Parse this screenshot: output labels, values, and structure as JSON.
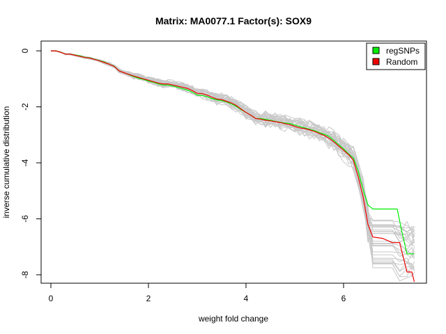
{
  "chart_data": {
    "type": "line",
    "title": "Matrix: MA0077.1 Factor(s): SOX9",
    "xlabel": "weight fold change",
    "ylabel": "inverse cumulative distribution",
    "xlim": [
      -0.2,
      7.7
    ],
    "ylim": [
      -8.3,
      0.35
    ],
    "x_ticks": [
      0,
      2,
      4,
      6
    ],
    "y_ticks": [
      0,
      -2,
      -4,
      -6,
      -8
    ],
    "grid": false,
    "legend_position": "top-right",
    "legend": [
      {
        "label": "regSNPs",
        "color": "#00ee00"
      },
      {
        "label": "Random",
        "color": "#ee0000"
      }
    ],
    "series": [
      {
        "name": "regSNPs",
        "color": "#00ee00",
        "points": [
          [
            0.0,
            0.0
          ],
          [
            0.1,
            0.0
          ],
          [
            0.2,
            -0.05
          ],
          [
            0.3,
            -0.12
          ],
          [
            0.4,
            -0.12
          ],
          [
            0.5,
            -0.15
          ],
          [
            0.6,
            -0.18
          ],
          [
            0.7,
            -0.23
          ],
          [
            0.8,
            -0.25
          ],
          [
            0.9,
            -0.3
          ],
          [
            1.0,
            -0.35
          ],
          [
            1.1,
            -0.4
          ],
          [
            1.2,
            -0.48
          ],
          [
            1.3,
            -0.55
          ],
          [
            1.4,
            -0.72
          ],
          [
            1.5,
            -0.78
          ],
          [
            1.6,
            -0.85
          ],
          [
            1.7,
            -0.92
          ],
          [
            1.8,
            -0.98
          ],
          [
            1.9,
            -1.02
          ],
          [
            2.0,
            -1.08
          ],
          [
            2.1,
            -1.12
          ],
          [
            2.2,
            -1.18
          ],
          [
            2.3,
            -1.22
          ],
          [
            2.4,
            -1.22
          ],
          [
            2.5,
            -1.26
          ],
          [
            2.6,
            -1.3
          ],
          [
            2.7,
            -1.35
          ],
          [
            2.8,
            -1.4
          ],
          [
            2.9,
            -1.48
          ],
          [
            3.0,
            -1.58
          ],
          [
            3.1,
            -1.6
          ],
          [
            3.2,
            -1.63
          ],
          [
            3.3,
            -1.7
          ],
          [
            3.4,
            -1.75
          ],
          [
            3.5,
            -1.78
          ],
          [
            3.6,
            -1.82
          ],
          [
            3.7,
            -1.9
          ],
          [
            3.8,
            -1.98
          ],
          [
            3.9,
            -2.1
          ],
          [
            4.0,
            -2.2
          ],
          [
            4.1,
            -2.3
          ],
          [
            4.2,
            -2.42
          ],
          [
            4.3,
            -2.42
          ],
          [
            4.4,
            -2.45
          ],
          [
            4.5,
            -2.48
          ],
          [
            4.6,
            -2.52
          ],
          [
            4.7,
            -2.55
          ],
          [
            4.8,
            -2.58
          ],
          [
            4.9,
            -2.6
          ],
          [
            5.0,
            -2.65
          ],
          [
            5.1,
            -2.7
          ],
          [
            5.2,
            -2.75
          ],
          [
            5.3,
            -2.8
          ],
          [
            5.4,
            -2.85
          ],
          [
            5.5,
            -2.92
          ],
          [
            5.6,
            -2.98
          ],
          [
            5.7,
            -3.05
          ],
          [
            5.8,
            -3.2
          ],
          [
            5.9,
            -3.35
          ],
          [
            6.0,
            -3.5
          ],
          [
            6.1,
            -3.68
          ],
          [
            6.2,
            -3.82
          ],
          [
            6.3,
            -4.3
          ],
          [
            6.4,
            -4.95
          ],
          [
            6.5,
            -5.5
          ],
          [
            6.6,
            -5.65
          ],
          [
            7.1,
            -5.65
          ],
          [
            7.2,
            -6.5
          ],
          [
            7.3,
            -7.25
          ],
          [
            7.45,
            -7.25
          ]
        ]
      },
      {
        "name": "Random",
        "color": "#ee0000",
        "points": [
          [
            0.0,
            0.0
          ],
          [
            0.1,
            0.0
          ],
          [
            0.2,
            -0.05
          ],
          [
            0.3,
            -0.12
          ],
          [
            0.4,
            -0.12
          ],
          [
            0.5,
            -0.16
          ],
          [
            0.6,
            -0.2
          ],
          [
            0.7,
            -0.24
          ],
          [
            0.8,
            -0.26
          ],
          [
            0.9,
            -0.31
          ],
          [
            1.0,
            -0.36
          ],
          [
            1.1,
            -0.42
          ],
          [
            1.2,
            -0.48
          ],
          [
            1.3,
            -0.56
          ],
          [
            1.4,
            -0.72
          ],
          [
            1.5,
            -0.78
          ],
          [
            1.6,
            -0.84
          ],
          [
            1.7,
            -0.9
          ],
          [
            1.8,
            -0.95
          ],
          [
            1.9,
            -1.0
          ],
          [
            2.0,
            -1.05
          ],
          [
            2.1,
            -1.1
          ],
          [
            2.2,
            -1.15
          ],
          [
            2.3,
            -1.18
          ],
          [
            2.4,
            -1.18
          ],
          [
            2.5,
            -1.22
          ],
          [
            2.6,
            -1.26
          ],
          [
            2.7,
            -1.3
          ],
          [
            2.8,
            -1.34
          ],
          [
            2.9,
            -1.42
          ],
          [
            3.0,
            -1.52
          ],
          [
            3.1,
            -1.53
          ],
          [
            3.2,
            -1.58
          ],
          [
            3.3,
            -1.65
          ],
          [
            3.4,
            -1.72
          ],
          [
            3.5,
            -1.74
          ],
          [
            3.6,
            -1.8
          ],
          [
            3.7,
            -1.86
          ],
          [
            3.8,
            -1.95
          ],
          [
            3.9,
            -2.08
          ],
          [
            4.0,
            -2.2
          ],
          [
            4.1,
            -2.3
          ],
          [
            4.2,
            -2.42
          ],
          [
            4.3,
            -2.44
          ],
          [
            4.4,
            -2.48
          ],
          [
            4.5,
            -2.5
          ],
          [
            4.6,
            -2.53
          ],
          [
            4.7,
            -2.56
          ],
          [
            4.8,
            -2.6
          ],
          [
            4.9,
            -2.64
          ],
          [
            5.0,
            -2.7
          ],
          [
            5.1,
            -2.75
          ],
          [
            5.2,
            -2.78
          ],
          [
            5.3,
            -2.82
          ],
          [
            5.4,
            -2.88
          ],
          [
            5.5,
            -2.95
          ],
          [
            5.6,
            -3.02
          ],
          [
            5.7,
            -3.12
          ],
          [
            5.8,
            -3.25
          ],
          [
            5.9,
            -3.4
          ],
          [
            6.0,
            -3.55
          ],
          [
            6.1,
            -3.7
          ],
          [
            6.2,
            -3.9
          ],
          [
            6.3,
            -4.5
          ],
          [
            6.4,
            -5.2
          ],
          [
            6.5,
            -6.2
          ],
          [
            6.6,
            -6.65
          ],
          [
            6.8,
            -6.7
          ],
          [
            7.0,
            -6.85
          ],
          [
            7.15,
            -6.85
          ],
          [
            7.3,
            -7.9
          ],
          [
            7.4,
            -7.9
          ],
          [
            7.45,
            -8.25
          ]
        ]
      }
    ],
    "background_series_color": "#c8c8c8"
  }
}
